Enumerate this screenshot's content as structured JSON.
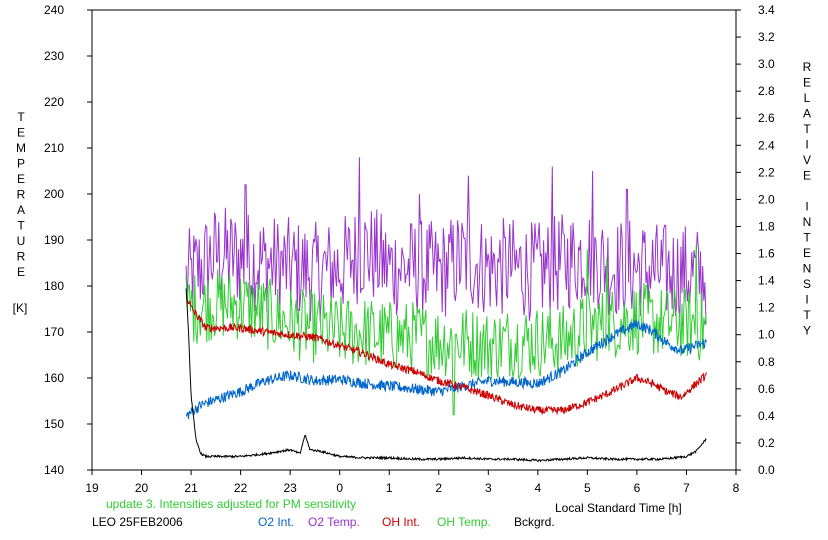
{
  "chart_data": {
    "type": "line",
    "xlabel": "Local Standard Time [h]",
    "ylabel_left_letters": [
      "T",
      "E",
      "M",
      "P",
      "E",
      "R",
      "A",
      "T",
      "U",
      "R",
      "E"
    ],
    "ylabel_left_unit": "[K]",
    "ylabel_right_letters": [
      "R",
      "E",
      "L",
      "A",
      "T",
      "I",
      "V",
      "E",
      "",
      "I",
      "N",
      "T",
      "E",
      "N",
      "S",
      "I",
      "T",
      "Y"
    ],
    "x_ticks": [
      19,
      20,
      21,
      22,
      23,
      24,
      25,
      26,
      27,
      28,
      29,
      30,
      31,
      32
    ],
    "x_tick_labels": [
      "19",
      "20",
      "21",
      "22",
      "23",
      "0",
      "1",
      "2",
      "3",
      "4",
      "5",
      "6",
      "7",
      "8"
    ],
    "xlim": [
      19,
      32
    ],
    "ylim_left": [
      140,
      240
    ],
    "y_left_ticks": [
      140,
      150,
      160,
      170,
      180,
      190,
      200,
      210,
      220,
      230,
      240
    ],
    "ylim_right": [
      0.0,
      3.4
    ],
    "y_right_ticks": [
      "0.0",
      "0.2",
      "0.4",
      "0.6",
      "0.8",
      "1.0",
      "1.2",
      "1.4",
      "1.6",
      "1.8",
      "2.0",
      "2.2",
      "2.4",
      "2.6",
      "2.8",
      "3.0",
      "3.2",
      "3.4"
    ],
    "grid": false,
    "note": "update 3. Intensities adjusted for PM sensitivity",
    "site_date": "LEO 25FEB2006",
    "series": [
      {
        "name": "O2 Temp.",
        "axis": "left",
        "color": "#9933cc",
        "x": [
          20.9,
          21.5,
          22.0,
          22.5,
          23.0,
          23.5,
          24.0,
          24.5,
          25.0,
          25.5,
          26.0,
          26.5,
          27.0,
          27.5,
          28.0,
          28.5,
          29.0,
          29.5,
          30.0,
          30.5,
          30.9,
          31.4
        ],
        "values": [
          181,
          187,
          186,
          185,
          184,
          183,
          184,
          188,
          184,
          184,
          183,
          186,
          184,
          184,
          183,
          185,
          187,
          184,
          184,
          183,
          183,
          182
        ],
        "noise": 11,
        "spikes": [
          [
            22.1,
            202
          ],
          [
            24.4,
            208
          ],
          [
            25.6,
            200
          ],
          [
            26.6,
            204
          ],
          [
            28.3,
            206
          ],
          [
            29.1,
            205
          ],
          [
            29.8,
            201
          ]
        ]
      },
      {
        "name": "OH Temp.",
        "axis": "left",
        "color": "#33cc33",
        "x": [
          20.9,
          21.5,
          22.0,
          22.5,
          23.0,
          23.5,
          24.0,
          24.5,
          25.0,
          25.5,
          26.0,
          26.5,
          27.0,
          27.5,
          28.0,
          28.5,
          29.0,
          29.5,
          30.0,
          30.5,
          30.9,
          31.4
        ],
        "values": [
          175,
          176,
          176,
          174,
          172,
          171,
          170,
          170,
          169,
          169,
          168,
          168,
          167,
          168,
          168,
          168,
          171,
          172,
          173,
          172,
          172,
          171
        ],
        "noise": 8,
        "spikes": [
          [
            26.3,
            152
          ],
          [
            29.0,
            188
          ],
          [
            29.4,
            186
          ],
          [
            31.2,
            189
          ]
        ]
      },
      {
        "name": "O2 Int.",
        "axis": "right",
        "color": "#0066cc",
        "x": [
          20.9,
          21.2,
          21.5,
          22.0,
          22.5,
          23.0,
          23.5,
          24.0,
          24.5,
          25.0,
          25.5,
          26.0,
          26.5,
          27.0,
          27.5,
          28.0,
          28.5,
          29.0,
          29.5,
          30.0,
          30.3,
          30.6,
          30.9,
          31.2,
          31.4
        ],
        "values": [
          0.4,
          0.48,
          0.52,
          0.58,
          0.66,
          0.7,
          0.66,
          0.67,
          0.64,
          0.62,
          0.6,
          0.58,
          0.62,
          0.66,
          0.65,
          0.64,
          0.73,
          0.87,
          0.99,
          1.08,
          1.03,
          0.94,
          0.88,
          0.92,
          0.94
        ],
        "noise": 0.04,
        "spikes": []
      },
      {
        "name": "OH Int.",
        "axis": "right",
        "color": "#cc0000",
        "x": [
          20.9,
          21.0,
          21.3,
          21.6,
          22.0,
          22.5,
          23.0,
          23.5,
          24.0,
          24.5,
          25.0,
          25.5,
          26.0,
          26.5,
          27.0,
          27.5,
          28.0,
          28.5,
          29.0,
          29.5,
          30.0,
          30.3,
          30.6,
          30.9,
          31.2,
          31.4
        ],
        "values": [
          1.3,
          1.2,
          1.05,
          1.05,
          1.05,
          1.02,
          1.0,
          0.98,
          0.92,
          0.86,
          0.78,
          0.73,
          0.66,
          0.61,
          0.55,
          0.48,
          0.44,
          0.44,
          0.5,
          0.58,
          0.68,
          0.64,
          0.58,
          0.54,
          0.64,
          0.7
        ],
        "noise": 0.03,
        "spikes": []
      },
      {
        "name": "Bckgrd.",
        "axis": "right",
        "color": "#000000",
        "x": [
          20.9,
          20.95,
          21.0,
          21.1,
          21.2,
          21.3,
          21.5,
          22.0,
          22.5,
          23.0,
          23.2,
          23.3,
          23.4,
          23.6,
          24.0,
          24.5,
          25.0,
          25.5,
          26.0,
          26.5,
          27.0,
          27.5,
          28.0,
          28.5,
          29.0,
          29.5,
          30.0,
          30.5,
          31.0,
          31.2,
          31.4
        ],
        "values": [
          1.35,
          1.0,
          0.55,
          0.22,
          0.12,
          0.1,
          0.1,
          0.1,
          0.12,
          0.15,
          0.12,
          0.26,
          0.15,
          0.14,
          0.1,
          0.09,
          0.09,
          0.08,
          0.08,
          0.09,
          0.08,
          0.08,
          0.07,
          0.08,
          0.09,
          0.08,
          0.08,
          0.08,
          0.1,
          0.14,
          0.23
        ],
        "noise": 0.008,
        "spikes": []
      }
    ],
    "legend": [
      "O2 Int.",
      "O2 Temp.",
      "OH Int.",
      "OH Temp.",
      "Bckgrd."
    ],
    "colors": {
      "o2_int": "#0066cc",
      "o2_temp": "#9933cc",
      "oh_int": "#cc0000",
      "oh_temp": "#33cc33",
      "bckgrd": "#000000",
      "note": "#33cc33",
      "axis": "#000000"
    }
  }
}
